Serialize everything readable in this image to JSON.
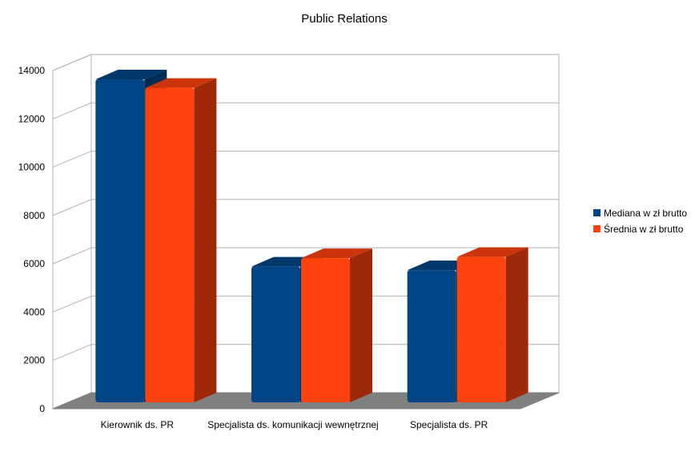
{
  "chart_data": {
    "type": "bar",
    "title": "Public Relations",
    "categories": [
      "Kierownik ds. PR",
      "Specjalista ds. komunikacji wewnętrznej",
      "Specjalista ds. PR"
    ],
    "series": [
      {
        "name": "Mediana w zł brutto",
        "values": [
          13700,
          5950,
          5800
        ],
        "color": "#004586"
      },
      {
        "name": "Średnia w zł brutto",
        "values": [
          13350,
          6300,
          6350
        ],
        "color": "#ff420e"
      }
    ],
    "ylim": [
      0,
      14000
    ],
    "yticks": [
      "0",
      "2000",
      "4000",
      "6000",
      "8000",
      "10000",
      "12000",
      "14000"
    ],
    "grid": true,
    "legend_position": "right",
    "three_d": true
  }
}
